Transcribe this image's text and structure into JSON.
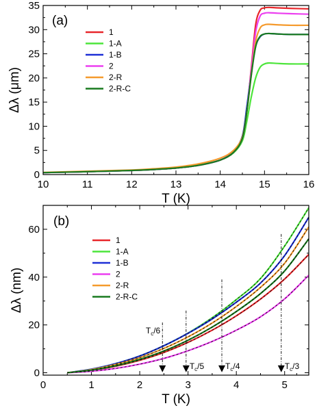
{
  "chart_data": [
    {
      "type": "line",
      "panel": "(a)",
      "xlabel": "T (K)",
      "ylabel": "Δλ (μm)",
      "xlim": [
        10,
        16
      ],
      "ylim": [
        0,
        35
      ],
      "xticks": [
        10,
        11,
        12,
        13,
        14,
        15,
        16
      ],
      "yticks": [
        0,
        5,
        10,
        15,
        20,
        25,
        30,
        35
      ],
      "legend_position": "top-left",
      "grid": false,
      "series": [
        {
          "name": "1",
          "color": "#e8262a",
          "x": [
            10,
            11,
            12,
            12.5,
            13,
            13.5,
            14,
            14.3,
            14.5,
            14.6,
            14.7,
            14.8,
            14.9,
            15,
            15.1,
            15.3,
            15.6,
            16
          ],
          "y": [
            0.4,
            0.6,
            0.85,
            1.05,
            1.35,
            1.9,
            3.0,
            4.6,
            7.5,
            13.0,
            22.0,
            31.0,
            34.0,
            34.5,
            34.6,
            34.5,
            34.4,
            34.3
          ]
        },
        {
          "name": "1-A",
          "color": "#4ce53a",
          "x": [
            10,
            11,
            12,
            12.5,
            13,
            13.5,
            14,
            14.3,
            14.5,
            14.6,
            14.7,
            14.8,
            14.9,
            15,
            15.1,
            15.3,
            15.6,
            16
          ],
          "y": [
            0.4,
            0.6,
            0.85,
            1.05,
            1.35,
            1.9,
            3.0,
            4.5,
            7.0,
            11.0,
            16.0,
            20.0,
            22.2,
            22.9,
            23.1,
            23.0,
            22.9,
            22.9
          ]
        },
        {
          "name": "1-B",
          "color": "#1d2fd6",
          "x": [
            10,
            11,
            12,
            12.5,
            13,
            13.5,
            14,
            14.3,
            14.5,
            14.6,
            14.7,
            14.8,
            14.9,
            15,
            15.1,
            15.3,
            15.6,
            16
          ],
          "y": [
            0.4,
            0.6,
            0.85,
            1.05,
            1.35,
            1.9,
            3.0,
            4.8,
            8.0,
            14.0,
            21.0,
            26.5,
            28.5,
            29.1,
            29.2,
            29.1,
            29.0,
            29.0
          ]
        },
        {
          "name": "2",
          "color": "#ec3ff0",
          "x": [
            10,
            11,
            12,
            12.5,
            13,
            13.5,
            14,
            14.3,
            14.5,
            14.6,
            14.7,
            14.8,
            14.9,
            15,
            15.1,
            15.3,
            15.6,
            16
          ],
          "y": [
            0.4,
            0.6,
            0.85,
            1.05,
            1.35,
            1.9,
            3.0,
            4.6,
            7.5,
            13.0,
            21.5,
            29.5,
            32.8,
            33.4,
            33.5,
            33.4,
            33.3,
            33.2
          ]
        },
        {
          "name": "2-R",
          "color": "#f59a2c",
          "x": [
            10,
            11,
            12,
            12.5,
            13,
            13.5,
            14,
            14.3,
            14.5,
            14.6,
            14.7,
            14.8,
            14.9,
            15,
            15.1,
            15.3,
            15.6,
            16
          ],
          "y": [
            0.45,
            0.7,
            0.95,
            1.2,
            1.55,
            2.2,
            3.4,
            5.0,
            7.8,
            13.0,
            20.5,
            27.5,
            30.3,
            31.0,
            31.1,
            31.0,
            30.9,
            30.9
          ]
        },
        {
          "name": "2-R-C",
          "color": "#187a1e",
          "x": [
            10,
            11,
            12,
            12.5,
            13,
            13.5,
            14,
            14.3,
            14.5,
            14.6,
            14.7,
            14.8,
            14.9,
            15,
            15.1,
            15.3,
            15.6,
            16
          ],
          "y": [
            0.4,
            0.6,
            0.85,
            1.05,
            1.35,
            1.9,
            3.0,
            4.6,
            7.5,
            13.0,
            20.5,
            26.5,
            28.6,
            29.1,
            29.2,
            29.1,
            29.0,
            29.0
          ]
        }
      ]
    },
    {
      "type": "line",
      "panel": "(b)",
      "xlabel": "T (K)",
      "ylabel": "Δλ (nm)",
      "xlim": [
        0,
        5.5
      ],
      "ylim": [
        -1,
        70
      ],
      "xticks": [
        0,
        1,
        2,
        3,
        4,
        5
      ],
      "yticks": [
        0,
        20,
        40,
        60
      ],
      "legend_position": "top-left",
      "grid": false,
      "series": [
        {
          "name": "1",
          "color": "#e8262a",
          "x": [
            0.5,
            1,
            1.5,
            2,
            2.5,
            3,
            3.5,
            4,
            4.5,
            5,
            5.5
          ],
          "y": [
            0,
            1.0,
            2.7,
            5.2,
            8.5,
            12.7,
            17.8,
            23.8,
            30.8,
            39.2,
            49.5
          ]
        },
        {
          "name": "1-A",
          "color": "#4ce53a",
          "x": [
            0.5,
            1,
            1.5,
            2,
            2.5,
            3,
            3.5,
            4,
            4.5,
            5,
            5.5
          ],
          "y": [
            0,
            1.5,
            3.8,
            7.0,
            11.3,
            16.6,
            23.0,
            30.6,
            39.4,
            53.0,
            69.0
          ]
        },
        {
          "name": "1-B",
          "color": "#1d2fd6",
          "x": [
            0.5,
            1,
            1.5,
            2,
            2.5,
            3,
            3.5,
            4,
            4.5,
            5,
            5.5
          ],
          "y": [
            0,
            1.5,
            3.8,
            7.0,
            11.3,
            16.5,
            22.5,
            29.5,
            37.5,
            49.0,
            65.0
          ]
        },
        {
          "name": "2",
          "color": "#ec3ff0",
          "x": [
            0.5,
            1,
            1.5,
            2,
            2.5,
            3,
            3.5,
            4,
            4.5,
            5,
            5.5
          ],
          "y": [
            0,
            0.6,
            1.8,
            3.6,
            6.0,
            9.2,
            13.1,
            17.8,
            23.4,
            30.9,
            40.8
          ]
        },
        {
          "name": "2-R",
          "color": "#f59a2c",
          "x": [
            0.5,
            1,
            1.5,
            2,
            2.5,
            3,
            3.5,
            4,
            4.5,
            5,
            5.5
          ],
          "y": [
            0,
            1.3,
            3.4,
            6.3,
            10.2,
            15.0,
            20.8,
            27.7,
            35.7,
            45.8,
            61.0
          ]
        },
        {
          "name": "2-R-C",
          "color": "#187a1e",
          "x": [
            0.5,
            1,
            1.5,
            2,
            2.5,
            3,
            3.5,
            4,
            4.5,
            5,
            5.5
          ],
          "y": [
            0,
            1.1,
            2.9,
            5.6,
            9.1,
            13.6,
            19.1,
            25.6,
            33.1,
            42.6,
            56.0
          ]
        }
      ],
      "annotations": [
        {
          "text": "T",
          "sub": "c",
          "suffix": "/6",
          "x": 2.47,
          "label_y": 16.5,
          "arrow_from": 21,
          "arrow_to": 0.5,
          "label_side": "left"
        },
        {
          "text": "T",
          "sub": "c",
          "suffix": "/5",
          "x": 2.96,
          "label_y": 0.5,
          "arrow_from": 26,
          "arrow_to": 0.5,
          "label_side": "right"
        },
        {
          "text": "T",
          "sub": "c",
          "suffix": "/4",
          "x": 3.7,
          "label_y": 0.5,
          "arrow_from": 39,
          "arrow_to": 0.5,
          "label_side": "right"
        },
        {
          "text": "T",
          "sub": "c",
          "suffix": "/3",
          "x": 4.93,
          "label_y": 0.5,
          "arrow_from": 58,
          "arrow_to": 0.5,
          "label_side": "right"
        }
      ]
    }
  ]
}
